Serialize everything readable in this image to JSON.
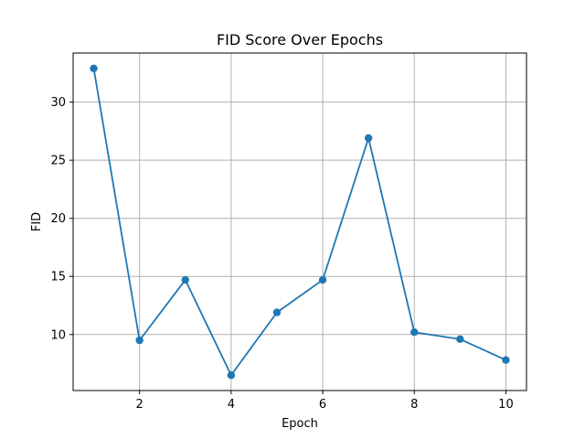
{
  "chart_data": {
    "type": "line",
    "title": "FID Score Over Epochs",
    "xlabel": "Epoch",
    "ylabel": "FID",
    "x": [
      1,
      2,
      3,
      4,
      5,
      6,
      7,
      8,
      9,
      10
    ],
    "series": [
      {
        "values": [
          32.9,
          9.5,
          14.7,
          6.5,
          11.9,
          14.7,
          26.9,
          10.2,
          9.6,
          7.8
        ]
      }
    ],
    "xlim": [
      0.55,
      10.45
    ],
    "ylim": [
      5.18,
      34.22
    ],
    "xticks": [
      2,
      4,
      6,
      8,
      10
    ],
    "yticks": [
      10,
      15,
      20,
      25,
      30
    ],
    "grid": true,
    "marker": "circle",
    "line_color": "#1f77b4"
  }
}
